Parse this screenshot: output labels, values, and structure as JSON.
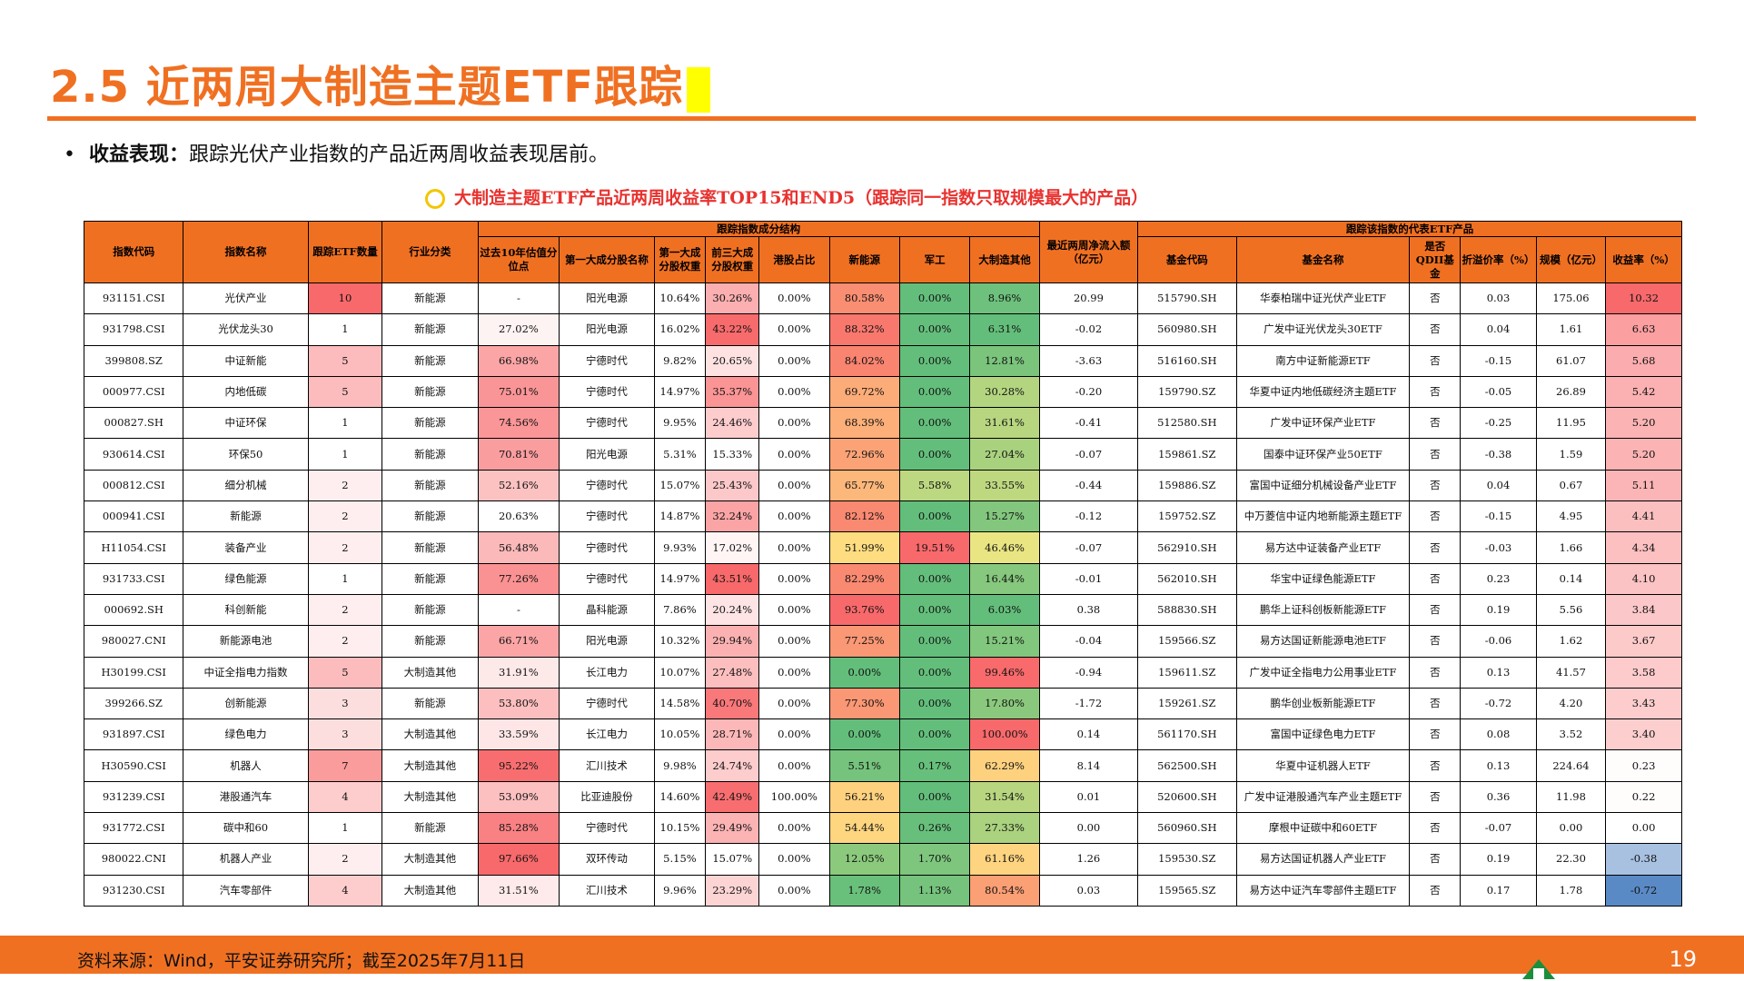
{
  "title": "2.5 近两周大制造主题ETF跟踪",
  "bullet": {
    "symbol": "•",
    "label": "收益表现：",
    "text": "跟踪光伏产业指数的产品近两周收益表现居前。"
  },
  "caption": "大制造主题ETF产品近两周收益率TOP15和END5（跟踪同一指数只取规模最大的产品）",
  "table": {
    "group_index_structure": "跟踪指数成分结构",
    "group_etf": "跟踪该指数的代表ETF产品",
    "headers": [
      "指数代码",
      "指数名称",
      "跟踪ETF数量",
      "行业分类",
      "过去10年估值分位点",
      "第一大成分股名称",
      "第一大成分股权重",
      "前三大成分股权重",
      "港股占比",
      "新能源",
      "军工",
      "大制造其他",
      "最近两周净流入额（亿元）",
      "基金代码",
      "基金名称",
      "是否QDII基金",
      "折溢价率（%）",
      "规模（亿元）",
      "收益率（%）"
    ],
    "rows": [
      [
        "931151.CSI",
        "光伏产业",
        "10",
        "新能源",
        "-",
        "阳光电源",
        "10.64%",
        "30.26%",
        "0.00%",
        "80.58%",
        "0.00%",
        "8.96%",
        "20.99",
        "515790.SH",
        "华泰柏瑞中证光伏产业ETF",
        "否",
        "0.03",
        "175.06",
        "10.32"
      ],
      [
        "931798.CSI",
        "光伏龙头30",
        "1",
        "新能源",
        "27.02%",
        "阳光电源",
        "16.02%",
        "43.22%",
        "0.00%",
        "88.32%",
        "0.00%",
        "6.31%",
        "-0.02",
        "560980.SH",
        "广发中证光伏龙头30ETF",
        "否",
        "0.04",
        "1.61",
        "6.63"
      ],
      [
        "399808.SZ",
        "中证新能",
        "5",
        "新能源",
        "66.98%",
        "宁德时代",
        "9.82%",
        "20.65%",
        "0.00%",
        "84.02%",
        "0.00%",
        "12.81%",
        "-3.63",
        "516160.SH",
        "南方中证新能源ETF",
        "否",
        "-0.15",
        "61.07",
        "5.68"
      ],
      [
        "000977.CSI",
        "内地低碳",
        "5",
        "新能源",
        "75.01%",
        "宁德时代",
        "14.97%",
        "35.37%",
        "0.00%",
        "69.72%",
        "0.00%",
        "30.28%",
        "-0.20",
        "159790.SZ",
        "华夏中证内地低碳经济主题ETF",
        "否",
        "-0.05",
        "26.89",
        "5.42"
      ],
      [
        "000827.SH",
        "中证环保",
        "1",
        "新能源",
        "74.56%",
        "宁德时代",
        "9.95%",
        "24.46%",
        "0.00%",
        "68.39%",
        "0.00%",
        "31.61%",
        "-0.41",
        "512580.SH",
        "广发中证环保产业ETF",
        "否",
        "-0.25",
        "11.95",
        "5.20"
      ],
      [
        "930614.CSI",
        "环保50",
        "1",
        "新能源",
        "70.81%",
        "阳光电源",
        "5.31%",
        "15.33%",
        "0.00%",
        "72.96%",
        "0.00%",
        "27.04%",
        "-0.07",
        "159861.SZ",
        "国泰中证环保产业50ETF",
        "否",
        "-0.38",
        "1.59",
        "5.20"
      ],
      [
        "000812.CSI",
        "细分机械",
        "2",
        "新能源",
        "52.16%",
        "宁德时代",
        "15.07%",
        "25.43%",
        "0.00%",
        "65.77%",
        "5.58%",
        "33.55%",
        "-0.44",
        "159886.SZ",
        "富国中证细分机械设备产业ETF",
        "否",
        "0.04",
        "0.67",
        "5.11"
      ],
      [
        "000941.CSI",
        "新能源",
        "2",
        "新能源",
        "20.63%",
        "宁德时代",
        "14.87%",
        "32.24%",
        "0.00%",
        "82.12%",
        "0.00%",
        "15.27%",
        "-0.12",
        "159752.SZ",
        "中万菱信中证内地新能源主题ETF",
        "否",
        "-0.15",
        "4.95",
        "4.41"
      ],
      [
        "H11054.CSI",
        "装备产业",
        "2",
        "新能源",
        "56.48%",
        "宁德时代",
        "9.93%",
        "17.02%",
        "0.00%",
        "51.99%",
        "19.51%",
        "46.46%",
        "-0.07",
        "562910.SH",
        "易方达中证装备产业ETF",
        "否",
        "-0.03",
        "1.66",
        "4.34"
      ],
      [
        "931733.CSI",
        "绿色能源",
        "1",
        "新能源",
        "77.26%",
        "宁德时代",
        "14.97%",
        "43.51%",
        "0.00%",
        "82.29%",
        "0.00%",
        "16.44%",
        "-0.01",
        "562010.SH",
        "华宝中证绿色能源ETF",
        "否",
        "0.23",
        "0.14",
        "4.10"
      ],
      [
        "000692.SH",
        "科创新能",
        "2",
        "新能源",
        "-",
        "晶科能源",
        "7.86%",
        "20.24%",
        "0.00%",
        "93.76%",
        "0.00%",
        "6.03%",
        "0.38",
        "588830.SH",
        "鹏华上证科创板新能源ETF",
        "否",
        "0.19",
        "5.56",
        "3.84"
      ],
      [
        "980027.CNI",
        "新能源电池",
        "2",
        "新能源",
        "66.71%",
        "阳光电源",
        "10.32%",
        "29.94%",
        "0.00%",
        "77.25%",
        "0.00%",
        "15.21%",
        "-0.04",
        "159566.SZ",
        "易方达国证新能源电池ETF",
        "否",
        "-0.06",
        "1.62",
        "3.67"
      ],
      [
        "H30199.CSI",
        "中证全指电力指数",
        "5",
        "大制造其他",
        "31.91%",
        "长江电力",
        "10.07%",
        "27.48%",
        "0.00%",
        "0.00%",
        "0.00%",
        "99.46%",
        "-0.94",
        "159611.SZ",
        "广发中证全指电力公用事业ETF",
        "否",
        "0.13",
        "41.57",
        "3.58"
      ],
      [
        "399266.SZ",
        "创新能源",
        "3",
        "新能源",
        "53.80%",
        "宁德时代",
        "14.58%",
        "40.70%",
        "0.00%",
        "77.30%",
        "0.00%",
        "17.80%",
        "-1.72",
        "159261.SZ",
        "鹏华创业板新能源ETF",
        "否",
        "-0.72",
        "4.20",
        "3.43"
      ],
      [
        "931897.CSI",
        "绿色电力",
        "3",
        "大制造其他",
        "33.59%",
        "长江电力",
        "10.05%",
        "28.71%",
        "0.00%",
        "0.00%",
        "0.00%",
        "100.00%",
        "0.14",
        "561170.SH",
        "富国中证绿色电力ETF",
        "否",
        "0.08",
        "3.52",
        "3.40"
      ],
      [
        "H30590.CSI",
        "机器人",
        "7",
        "大制造其他",
        "95.22%",
        "汇川技术",
        "9.98%",
        "24.74%",
        "0.00%",
        "5.51%",
        "0.17%",
        "62.29%",
        "8.14",
        "562500.SH",
        "华夏中证机器人ETF",
        "否",
        "0.13",
        "224.64",
        "0.23"
      ],
      [
        "931239.CSI",
        "港股通汽车",
        "4",
        "大制造其他",
        "53.09%",
        "比亚迪股份",
        "14.60%",
        "42.49%",
        "100.00%",
        "56.21%",
        "0.00%",
        "31.54%",
        "0.01",
        "520600.SH",
        "广发中证港股通汽车产业主题ETF",
        "否",
        "0.36",
        "11.98",
        "0.22"
      ],
      [
        "931772.CSI",
        "碳中和60",
        "1",
        "新能源",
        "85.28%",
        "宁德时代",
        "10.15%",
        "29.49%",
        "0.00%",
        "54.44%",
        "0.26%",
        "27.33%",
        "0.00",
        "560960.SH",
        "摩根中证碳中和60ETF",
        "否",
        "-0.07",
        "0.00",
        "0.00"
      ],
      [
        "980022.CNI",
        "机器人产业",
        "2",
        "大制造其他",
        "97.66%",
        "双环传动",
        "5.15%",
        "15.07%",
        "0.00%",
        "12.05%",
        "1.70%",
        "61.16%",
        "1.26",
        "159530.SZ",
        "易方达国证机器人产业ETF",
        "否",
        "0.19",
        "22.30",
        "-0.38"
      ],
      [
        "931230.CSI",
        "汽车零部件",
        "4",
        "大制造其他",
        "31.51%",
        "汇川技术",
        "9.96%",
        "23.29%",
        "0.00%",
        "1.78%",
        "1.13%",
        "80.54%",
        "0.03",
        "159565.SZ",
        "易方达中证汽车零部件主题ETF",
        "否",
        "0.17",
        "1.78",
        "-0.72"
      ]
    ]
  },
  "footer": {
    "source": "资料来源：Wind，平安证券研究所；截至2025年7月11日",
    "page": "19"
  },
  "colors": {
    "accent": "#f07022",
    "red_high": "#f8696b",
    "green_high": "#63be7b",
    "blue_low": "#5a8ac6"
  }
}
